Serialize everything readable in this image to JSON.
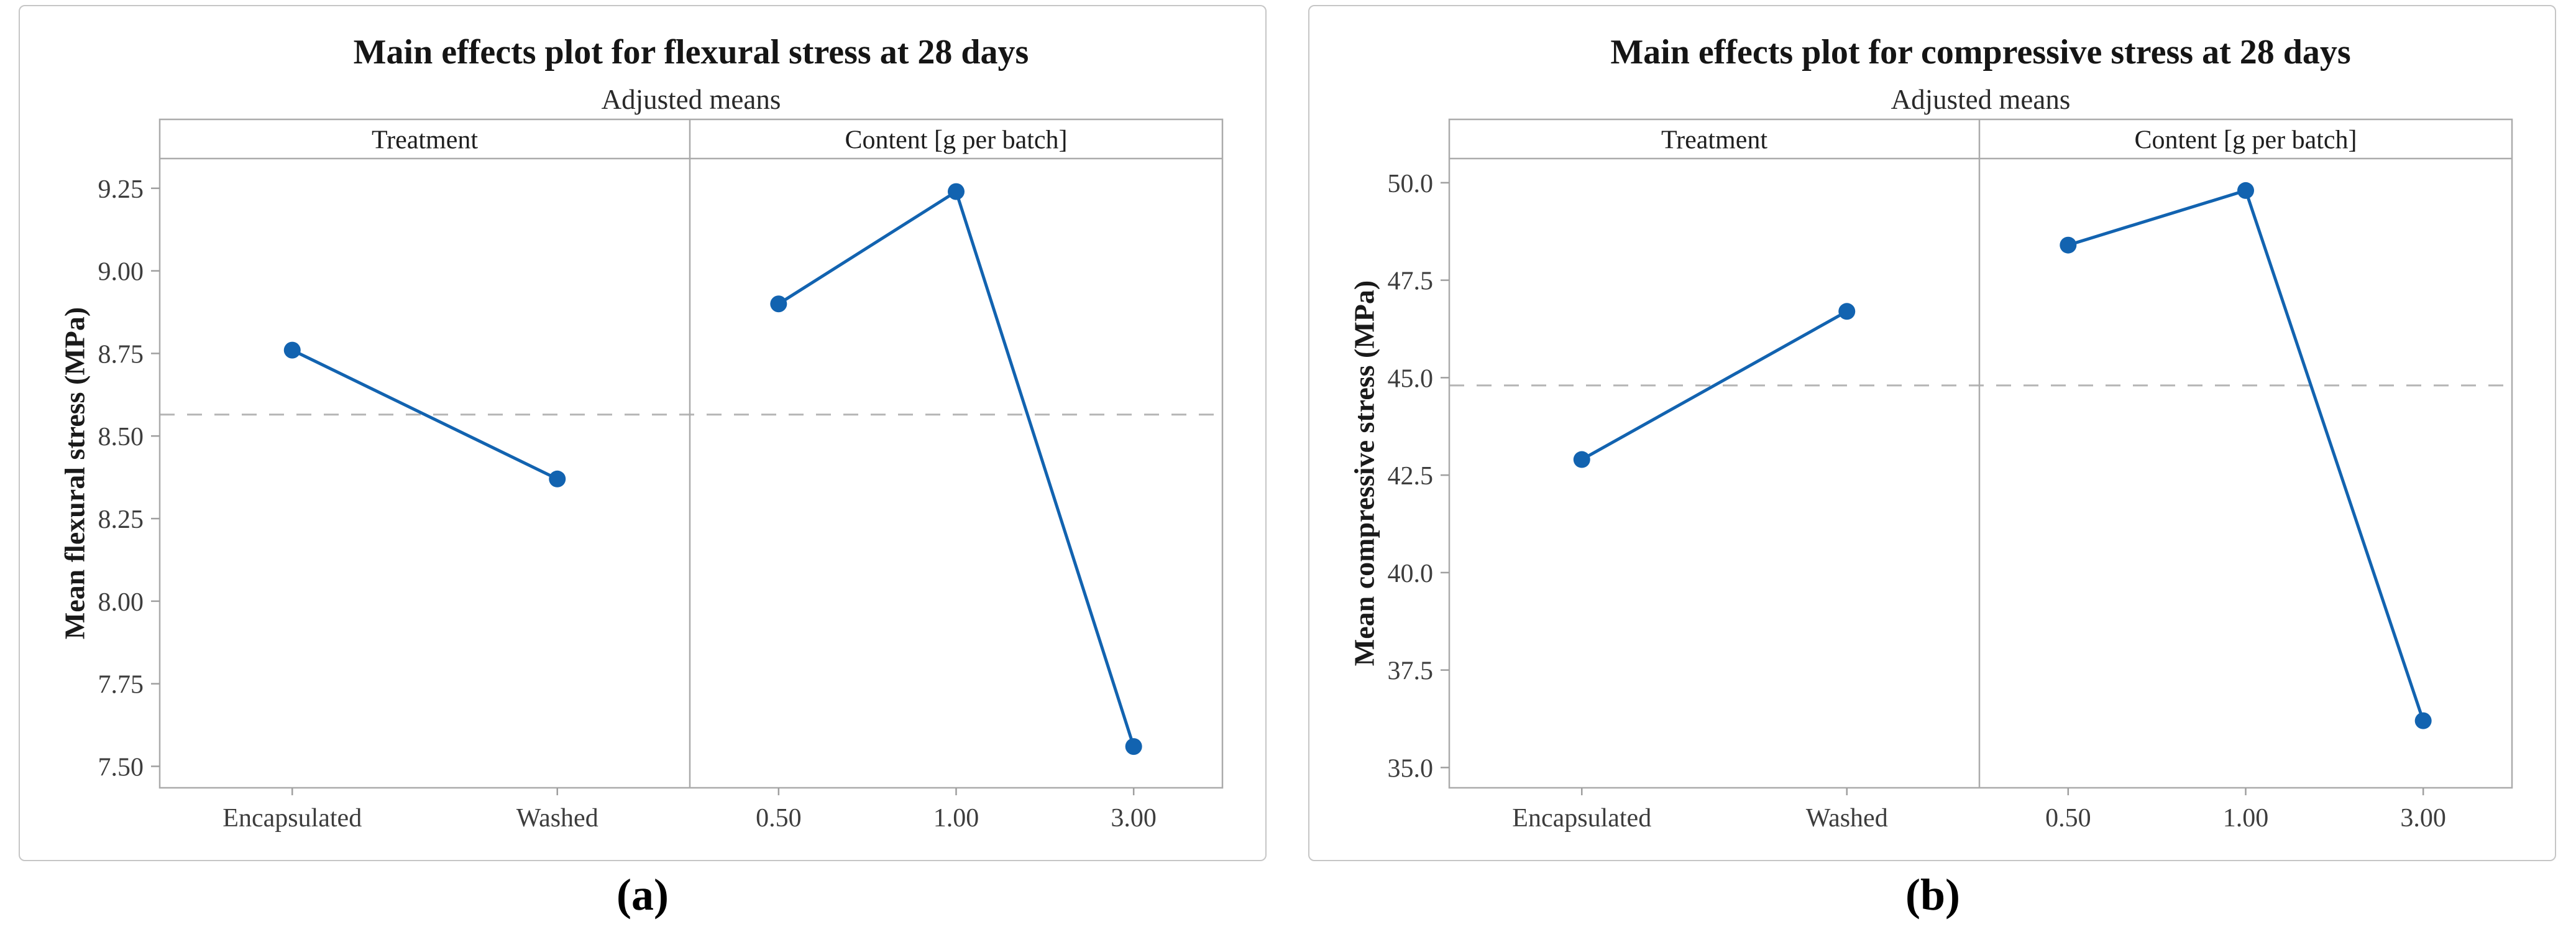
{
  "figure": {
    "description": "Two Minitab-style main effects plots shown side by side",
    "captions": {
      "a": "(a)",
      "b": "(b)"
    }
  },
  "colors": {
    "series_blue": "#1263b0",
    "frame_gray": "#ababab",
    "tick_gray": "#9f9f9f",
    "dashed_gray": "#b5b5b5",
    "tick_text": "#3d3d3d",
    "header_text": "#1e1e1e",
    "card_border": "#c6c6c6"
  },
  "chart_data": [
    {
      "type": "line",
      "title": "Main effects plot for flexural stress at 28 days",
      "subtitle": "Adjusted means",
      "ylabel": "Mean flexural stress (MPa)",
      "legend": "none",
      "grid": false,
      "panels": [
        {
          "header": "Treatment",
          "categories": [
            "Encapsulated",
            "Washed"
          ],
          "values": [
            8.76,
            8.37
          ]
        },
        {
          "header": "Content [g per batch]",
          "categories": [
            "0.50",
            "1.00",
            "3.00"
          ],
          "values": [
            8.9,
            9.24,
            7.56
          ]
        }
      ],
      "yticks": [
        7.5,
        7.75,
        8.0,
        8.25,
        8.5,
        8.75,
        9.0,
        9.25
      ],
      "ytick_labels": [
        "7.50",
        "7.75",
        "8.00",
        "8.25",
        "8.50",
        "8.75",
        "9.00",
        "9.25"
      ],
      "ylim": [
        7.435,
        9.34
      ],
      "mean_line": 8.565,
      "mean_line_style": "dashed"
    },
    {
      "type": "line",
      "title": "Main effects plot for compressive stress at 28 days",
      "subtitle": "Adjusted means",
      "ylabel": "Mean compressive stress (MPa)",
      "legend": "none",
      "grid": false,
      "panels": [
        {
          "header": "Treatment",
          "categories": [
            "Encapsulated",
            "Washed"
          ],
          "values": [
            42.9,
            46.7
          ]
        },
        {
          "header": "Content [g per batch]",
          "categories": [
            "0.50",
            "1.00",
            "3.00"
          ],
          "values": [
            48.4,
            49.8,
            36.2
          ]
        }
      ],
      "yticks": [
        35.0,
        37.5,
        40.0,
        42.5,
        45.0,
        47.5,
        50.0
      ],
      "ytick_labels": [
        "35.0",
        "37.5",
        "40.0",
        "42.5",
        "45.0",
        "47.5",
        "50.0"
      ],
      "ylim": [
        34.48,
        50.62
      ],
      "mean_line": 44.8,
      "mean_line_style": "dashed"
    }
  ]
}
